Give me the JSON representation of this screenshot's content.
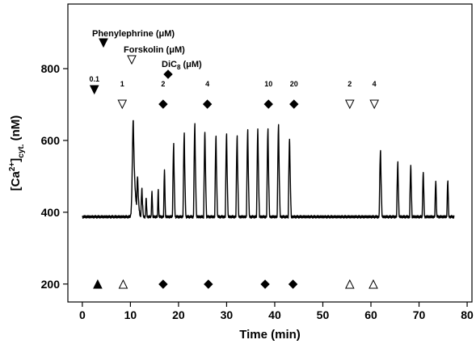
{
  "chart_data": {
    "type": "line",
    "xlabel": "Time (min)",
    "ylabel_parts": [
      "[Ca",
      "2+",
      "]",
      "cyt.",
      " (nM)"
    ],
    "xlim": [
      -3,
      81
    ],
    "ylim": [
      150,
      980
    ],
    "xticks": [
      0,
      10,
      20,
      30,
      40,
      50,
      60,
      70,
      80
    ],
    "yticks": [
      200,
      400,
      600,
      800
    ],
    "legend": [
      {
        "text": "Phenylephrine (μM)",
        "marker": "down-filled"
      },
      {
        "text": "Forskolin (μM)",
        "marker": "down-open"
      },
      {
        "text_main": "DiC",
        "text_sub": "8",
        "text_tail": " (μM)",
        "marker": "diamond"
      }
    ],
    "additions": [
      {
        "time": 2.5,
        "marker": "down-filled",
        "label": "0.1"
      },
      {
        "time": 8.3,
        "marker": "down-open",
        "label": "1"
      },
      {
        "time": 16.8,
        "marker": "diamond",
        "label": "2"
      },
      {
        "time": 26.0,
        "marker": "diamond",
        "label": "4"
      },
      {
        "time": 38.7,
        "marker": "diamond",
        "label": "10"
      },
      {
        "time": 44.0,
        "marker": "diamond",
        "label": "20"
      },
      {
        "time": 55.6,
        "marker": "down-open",
        "label": "2"
      },
      {
        "time": 60.7,
        "marker": "down-open",
        "label": "4"
      }
    ],
    "removals": [
      {
        "time": 3.2,
        "marker": "up-filled"
      },
      {
        "time": 8.5,
        "marker": "up-open"
      },
      {
        "time": 16.8,
        "marker": "diamond"
      },
      {
        "time": 26.2,
        "marker": "diamond"
      },
      {
        "time": 38.0,
        "marker": "diamond"
      },
      {
        "time": 43.8,
        "marker": "diamond"
      },
      {
        "time": 55.6,
        "marker": "up-open"
      },
      {
        "time": 60.5,
        "marker": "up-open"
      }
    ],
    "trace": {
      "baseline_segments": [
        [
          0,
          225
        ],
        [
          3,
          228
        ],
        [
          6,
          232
        ],
        [
          8,
          235
        ],
        [
          9.6,
          243
        ]
      ],
      "spikes": [
        {
          "t": 10.6,
          "peak": 658,
          "width": 0.35
        },
        {
          "t": 11.5,
          "peak": 502,
          "width": 0.3
        },
        {
          "t": 12.4,
          "peak": 465,
          "width": 0.3
        },
        {
          "t": 13.3,
          "peak": 440,
          "width": 0.3
        },
        {
          "t": 14.5,
          "peak": 458,
          "width": 0.3
        },
        {
          "t": 15.8,
          "peak": 462,
          "width": 0.3
        },
        {
          "t": 17.1,
          "peak": 520,
          "width": 0.32
        },
        {
          "t": 19.0,
          "peak": 588,
          "width": 0.35
        },
        {
          "t": 21.2,
          "peak": 618,
          "width": 0.35
        },
        {
          "t": 23.4,
          "peak": 645,
          "width": 0.35
        },
        {
          "t": 25.5,
          "peak": 625,
          "width": 0.35
        },
        {
          "t": 27.8,
          "peak": 612,
          "width": 0.35
        },
        {
          "t": 30.0,
          "peak": 618,
          "width": 0.35
        },
        {
          "t": 32.2,
          "peak": 612,
          "width": 0.35
        },
        {
          "t": 34.4,
          "peak": 628,
          "width": 0.35
        },
        {
          "t": 36.5,
          "peak": 632,
          "width": 0.35
        },
        {
          "t": 38.6,
          "peak": 632,
          "width": 0.35
        },
        {
          "t": 40.8,
          "peak": 645,
          "width": 0.35
        },
        {
          "t": 43.1,
          "peak": 605,
          "width": 0.38
        },
        {
          "t": 62.0,
          "peak": 572,
          "width": 0.4
        },
        {
          "t": 65.6,
          "peak": 538,
          "width": 0.38
        },
        {
          "t": 68.3,
          "peak": 530,
          "width": 0.38
        },
        {
          "t": 70.9,
          "peak": 512,
          "width": 0.38
        },
        {
          "t": 73.5,
          "peak": 488,
          "width": 0.38
        },
        {
          "t": 76.0,
          "peak": 488,
          "width": 0.38
        }
      ],
      "tail_end": 77.3
    }
  }
}
